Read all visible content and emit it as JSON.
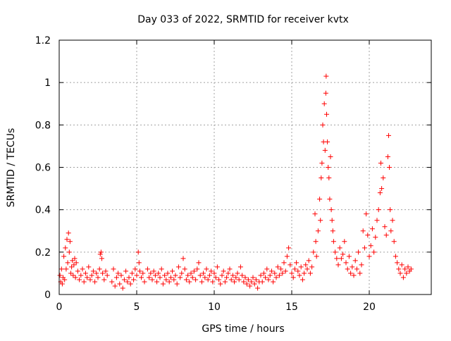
{
  "colors": {
    "series": "#ff0000",
    "axis": "#000000",
    "grid": "#a0a0a0",
    "background": "#ffffff"
  },
  "chart_data": {
    "type": "scatter",
    "title": "Day 033 of 2022, SRMTID for receiver kvtx",
    "xlabel": "GPS time / hours",
    "ylabel": "SRMTID / TECUs",
    "xlim": [
      0,
      24
    ],
    "ylim": [
      0,
      1.2
    ],
    "grid": true,
    "marker": "+",
    "x_ticks": [
      0,
      5,
      10,
      15,
      20
    ],
    "x_tick_labels": [
      "0",
      "5",
      "10",
      "15",
      "20"
    ],
    "y_ticks": [
      0,
      0.2,
      0.4,
      0.6,
      0.8,
      1.0,
      1.2
    ],
    "y_tick_labels": [
      "0",
      "0.2",
      "0.4",
      "0.6",
      "0.8",
      "1",
      "1.2"
    ],
    "series": [
      {
        "name": "SRMTID",
        "points": [
          [
            0.05,
            0.09
          ],
          [
            0.1,
            0.06
          ],
          [
            0.15,
            0.12
          ],
          [
            0.2,
            0.05
          ],
          [
            0.25,
            0.08
          ],
          [
            0.3,
            0.18
          ],
          [
            0.35,
            0.07
          ],
          [
            0.4,
            0.22
          ],
          [
            0.45,
            0.12
          ],
          [
            0.5,
            0.26
          ],
          [
            0.55,
            0.15
          ],
          [
            0.6,
            0.29
          ],
          [
            0.65,
            0.2
          ],
          [
            0.7,
            0.25
          ],
          [
            0.75,
            0.1
          ],
          [
            0.8,
            0.13
          ],
          [
            0.85,
            0.16
          ],
          [
            0.9,
            0.09
          ],
          [
            0.95,
            0.14
          ],
          [
            1.0,
            0.17
          ],
          [
            1.05,
            0.08
          ],
          [
            1.1,
            0.15
          ],
          [
            1.2,
            0.11
          ],
          [
            1.3,
            0.07
          ],
          [
            1.4,
            0.09
          ],
          [
            1.5,
            0.12
          ],
          [
            1.6,
            0.06
          ],
          [
            1.7,
            0.1
          ],
          [
            1.8,
            0.08
          ],
          [
            1.9,
            0.13
          ],
          [
            2.0,
            0.07
          ],
          [
            2.1,
            0.09
          ],
          [
            2.2,
            0.11
          ],
          [
            2.3,
            0.06
          ],
          [
            2.4,
            0.1
          ],
          [
            2.5,
            0.08
          ],
          [
            2.6,
            0.12
          ],
          [
            2.65,
            0.19
          ],
          [
            2.7,
            0.2
          ],
          [
            2.75,
            0.17
          ],
          [
            2.8,
            0.1
          ],
          [
            2.9,
            0.07
          ],
          [
            3.0,
            0.11
          ],
          [
            3.1,
            0.09
          ],
          [
            3.4,
            0.06
          ],
          [
            3.5,
            0.12
          ],
          [
            3.6,
            0.04
          ],
          [
            3.7,
            0.08
          ],
          [
            3.8,
            0.1
          ],
          [
            3.9,
            0.05
          ],
          [
            4.0,
            0.09
          ],
          [
            4.1,
            0.03
          ],
          [
            4.2,
            0.07
          ],
          [
            4.3,
            0.11
          ],
          [
            4.4,
            0.06
          ],
          [
            4.5,
            0.08
          ],
          [
            4.6,
            0.05
          ],
          [
            4.7,
            0.1
          ],
          [
            4.8,
            0.07
          ],
          [
            4.9,
            0.12
          ],
          [
            5.0,
            0.09
          ],
          [
            5.1,
            0.2
          ],
          [
            5.15,
            0.15
          ],
          [
            5.2,
            0.11
          ],
          [
            5.3,
            0.08
          ],
          [
            5.4,
            0.1
          ],
          [
            5.5,
            0.06
          ],
          [
            5.7,
            0.12
          ],
          [
            5.8,
            0.08
          ],
          [
            5.9,
            0.1
          ],
          [
            6.0,
            0.07
          ],
          [
            6.1,
            0.11
          ],
          [
            6.2,
            0.09
          ],
          [
            6.3,
            0.06
          ],
          [
            6.4,
            0.1
          ],
          [
            6.5,
            0.08
          ],
          [
            6.6,
            0.12
          ],
          [
            6.7,
            0.05
          ],
          [
            6.8,
            0.09
          ],
          [
            6.9,
            0.07
          ],
          [
            7.0,
            0.1
          ],
          [
            7.1,
            0.06
          ],
          [
            7.2,
            0.08
          ],
          [
            7.3,
            0.11
          ],
          [
            7.4,
            0.07
          ],
          [
            7.5,
            0.09
          ],
          [
            7.6,
            0.05
          ],
          [
            7.7,
            0.13
          ],
          [
            7.8,
            0.08
          ],
          [
            7.9,
            0.1
          ],
          [
            8.0,
            0.17
          ],
          [
            8.1,
            0.12
          ],
          [
            8.2,
            0.07
          ],
          [
            8.3,
            0.09
          ],
          [
            8.4,
            0.06
          ],
          [
            8.5,
            0.1
          ],
          [
            8.6,
            0.08
          ],
          [
            8.7,
            0.11
          ],
          [
            8.8,
            0.07
          ],
          [
            8.9,
            0.12
          ],
          [
            9.0,
            0.15
          ],
          [
            9.1,
            0.09
          ],
          [
            9.2,
            0.06
          ],
          [
            9.3,
            0.1
          ],
          [
            9.4,
            0.08
          ],
          [
            9.5,
            0.12
          ],
          [
            9.6,
            0.07
          ],
          [
            9.7,
            0.09
          ],
          [
            9.8,
            0.11
          ],
          [
            9.9,
            0.06
          ],
          [
            10.0,
            0.1
          ],
          [
            10.1,
            0.08
          ],
          [
            10.2,
            0.13
          ],
          [
            10.3,
            0.07
          ],
          [
            10.4,
            0.05
          ],
          [
            10.5,
            0.09
          ],
          [
            10.6,
            0.11
          ],
          [
            10.7,
            0.06
          ],
          [
            10.8,
            0.08
          ],
          [
            10.9,
            0.1
          ],
          [
            11.0,
            0.12
          ],
          [
            11.1,
            0.07
          ],
          [
            11.2,
            0.09
          ],
          [
            11.3,
            0.06
          ],
          [
            11.4,
            0.08
          ],
          [
            11.5,
            0.1
          ],
          [
            11.6,
            0.07
          ],
          [
            11.7,
            0.13
          ],
          [
            11.8,
            0.09
          ],
          [
            11.9,
            0.06
          ],
          [
            12.0,
            0.08
          ],
          [
            12.1,
            0.05
          ],
          [
            12.2,
            0.07
          ],
          [
            12.3,
            0.04
          ],
          [
            12.4,
            0.06
          ],
          [
            12.5,
            0.08
          ],
          [
            12.6,
            0.05
          ],
          [
            12.7,
            0.07
          ],
          [
            12.8,
            0.03
          ],
          [
            12.9,
            0.06
          ],
          [
            13.0,
            0.09
          ],
          [
            13.1,
            0.06
          ],
          [
            13.2,
            0.1
          ],
          [
            13.3,
            0.08
          ],
          [
            13.4,
            0.12
          ],
          [
            13.5,
            0.07
          ],
          [
            13.6,
            0.09
          ],
          [
            13.7,
            0.11
          ],
          [
            13.8,
            0.06
          ],
          [
            13.9,
            0.1
          ],
          [
            14.0,
            0.08
          ],
          [
            14.1,
            0.13
          ],
          [
            14.2,
            0.09
          ],
          [
            14.3,
            0.12
          ],
          [
            14.4,
            0.1
          ],
          [
            14.5,
            0.15
          ],
          [
            14.6,
            0.11
          ],
          [
            14.7,
            0.18
          ],
          [
            14.8,
            0.22
          ],
          [
            14.9,
            0.14
          ],
          [
            15.0,
            0.1
          ],
          [
            15.1,
            0.08
          ],
          [
            15.2,
            0.12
          ],
          [
            15.3,
            0.15
          ],
          [
            15.4,
            0.11
          ],
          [
            15.5,
            0.09
          ],
          [
            15.6,
            0.13
          ],
          [
            15.7,
            0.07
          ],
          [
            15.8,
            0.1
          ],
          [
            15.9,
            0.14
          ],
          [
            16.0,
            0.12
          ],
          [
            16.1,
            0.16
          ],
          [
            16.2,
            0.1
          ],
          [
            16.3,
            0.13
          ],
          [
            16.4,
            0.2
          ],
          [
            16.5,
            0.38
          ],
          [
            16.55,
            0.25
          ],
          [
            16.6,
            0.18
          ],
          [
            16.7,
            0.3
          ],
          [
            16.8,
            0.45
          ],
          [
            16.85,
            0.35
          ],
          [
            16.9,
            0.55
          ],
          [
            16.95,
            0.62
          ],
          [
            17.0,
            0.8
          ],
          [
            17.05,
            0.72
          ],
          [
            17.1,
            0.9
          ],
          [
            17.15,
            0.68
          ],
          [
            17.2,
            0.95
          ],
          [
            17.22,
            1.03
          ],
          [
            17.25,
            0.85
          ],
          [
            17.3,
            0.72
          ],
          [
            17.35,
            0.6
          ],
          [
            17.4,
            0.55
          ],
          [
            17.45,
            0.45
          ],
          [
            17.5,
            0.65
          ],
          [
            17.55,
            0.4
          ],
          [
            17.6,
            0.35
          ],
          [
            17.65,
            0.3
          ],
          [
            17.7,
            0.25
          ],
          [
            17.8,
            0.2
          ],
          [
            17.9,
            0.17
          ],
          [
            18.0,
            0.14
          ],
          [
            18.1,
            0.22
          ],
          [
            18.2,
            0.17
          ],
          [
            18.3,
            0.19
          ],
          [
            18.4,
            0.25
          ],
          [
            18.5,
            0.15
          ],
          [
            18.6,
            0.12
          ],
          [
            18.7,
            0.18
          ],
          [
            18.8,
            0.1
          ],
          [
            18.9,
            0.13
          ],
          [
            19.0,
            0.09
          ],
          [
            19.1,
            0.16
          ],
          [
            19.2,
            0.12
          ],
          [
            19.3,
            0.2
          ],
          [
            19.4,
            0.1
          ],
          [
            19.5,
            0.14
          ],
          [
            19.6,
            0.3
          ],
          [
            19.7,
            0.22
          ],
          [
            19.8,
            0.38
          ],
          [
            19.9,
            0.28
          ],
          [
            20.0,
            0.18
          ],
          [
            20.1,
            0.23
          ],
          [
            20.2,
            0.31
          ],
          [
            20.3,
            0.2
          ],
          [
            20.4,
            0.27
          ],
          [
            20.5,
            0.35
          ],
          [
            20.6,
            0.4
          ],
          [
            20.7,
            0.48
          ],
          [
            20.75,
            0.62
          ],
          [
            20.8,
            0.5
          ],
          [
            20.9,
            0.55
          ],
          [
            21.0,
            0.32
          ],
          [
            21.1,
            0.28
          ],
          [
            21.2,
            0.65
          ],
          [
            21.25,
            0.75
          ],
          [
            21.3,
            0.6
          ],
          [
            21.35,
            0.4
          ],
          [
            21.4,
            0.3
          ],
          [
            21.5,
            0.35
          ],
          [
            21.6,
            0.25
          ],
          [
            21.7,
            0.18
          ],
          [
            21.8,
            0.15
          ],
          [
            21.9,
            0.12
          ],
          [
            22.0,
            0.1
          ],
          [
            22.1,
            0.14
          ],
          [
            22.2,
            0.08
          ],
          [
            22.3,
            0.12
          ],
          [
            22.4,
            0.1
          ],
          [
            22.5,
            0.13
          ],
          [
            22.6,
            0.11
          ],
          [
            22.7,
            0.12
          ]
        ]
      }
    ]
  }
}
